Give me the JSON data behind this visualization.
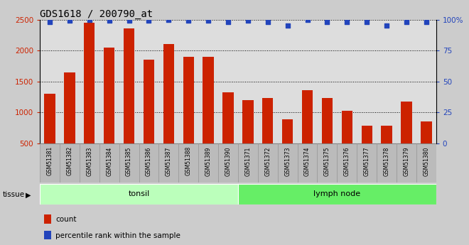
{
  "title": "GDS1618 / 200790_at",
  "categories": [
    "GSM51381",
    "GSM51382",
    "GSM51383",
    "GSM51384",
    "GSM51385",
    "GSM51386",
    "GSM51387",
    "GSM51388",
    "GSM51389",
    "GSM51390",
    "GSM51371",
    "GSM51372",
    "GSM51373",
    "GSM51374",
    "GSM51375",
    "GSM51376",
    "GSM51377",
    "GSM51378",
    "GSM51379",
    "GSM51380"
  ],
  "bar_values": [
    1300,
    1650,
    2450,
    2050,
    2360,
    1850,
    2100,
    1900,
    1900,
    1330,
    1200,
    1230,
    890,
    1360,
    1230,
    1030,
    790,
    780,
    1170,
    850
  ],
  "percentile_values": [
    98,
    99,
    99.5,
    99,
    99,
    99,
    99.5,
    99,
    99,
    98,
    99,
    98,
    95,
    99.5,
    98,
    98,
    98,
    95,
    98,
    98
  ],
  "bar_color": "#cc2200",
  "dot_color": "#2244bb",
  "ymin": 500,
  "ymax": 2500,
  "yright_min": 0,
  "yright_max": 100,
  "yticks_left": [
    500,
    1000,
    1500,
    2000,
    2500
  ],
  "yticks_right": [
    0,
    25,
    50,
    75,
    100
  ],
  "grid_values": [
    1000,
    1500,
    2000,
    2500
  ],
  "tonsil_color": "#bbffbb",
  "lymph_color": "#66ee66",
  "tissue_label": "tissue",
  "legend_count": "count",
  "legend_percentile": "percentile rank within the sample",
  "bg_color": "#cccccc",
  "plot_bg_color": "#dddddd",
  "tick_bg_color": "#bbbbbb"
}
